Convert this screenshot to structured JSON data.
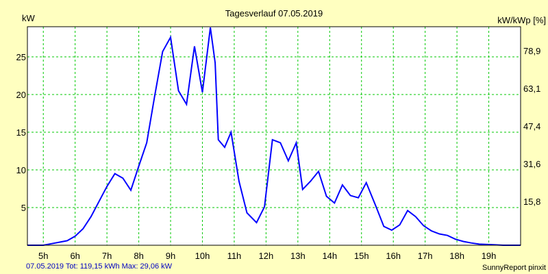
{
  "chart_data": {
    "type": "line",
    "title": "Tagesverlauf 07.05.2019",
    "ylabel_left": "kW",
    "ylabel_right": "kW/kWp [%]",
    "xlim": [
      4.5,
      20.0
    ],
    "ylim": [
      0,
      29
    ],
    "x_ticks": [
      5,
      6,
      7,
      8,
      9,
      10,
      11,
      12,
      13,
      14,
      15,
      16,
      17,
      18,
      19
    ],
    "x_tick_labels": [
      "5h",
      "6h",
      "7h",
      "8h",
      "9h",
      "10h",
      "11h",
      "12h",
      "13h",
      "14h",
      "15h",
      "16h",
      "17h",
      "18h",
      "19h"
    ],
    "y_ticks_left": [
      5,
      10,
      15,
      20,
      25
    ],
    "y_tick_labels_left": [
      "5",
      "10",
      "15",
      "20",
      "25"
    ],
    "y_ticks_right_at": [
      5.8,
      10.8,
      15.8,
      20.8,
      25.8
    ],
    "y_tick_labels_right": [
      "15,8",
      "31,6",
      "47,4",
      "63,1",
      "78,9"
    ],
    "grid": true,
    "series": [
      {
        "x": [
          4.5,
          5.0,
          5.25,
          5.5,
          5.75,
          6.0,
          6.25,
          6.5,
          6.75,
          7.0,
          7.25,
          7.5,
          7.75,
          8.0,
          8.25,
          8.5,
          8.75,
          9.0,
          9.25,
          9.5,
          9.75,
          10.0,
          10.25,
          10.4,
          10.5,
          10.7,
          10.9,
          11.15,
          11.4,
          11.7,
          11.95,
          12.2,
          12.45,
          12.7,
          12.95,
          13.15,
          13.4,
          13.65,
          13.9,
          14.15,
          14.4,
          14.65,
          14.9,
          15.15,
          15.45,
          15.7,
          15.95,
          16.2,
          16.45,
          16.7,
          16.95,
          17.2,
          17.45,
          17.7,
          17.95,
          18.2,
          18.45,
          18.7,
          18.95,
          19.2,
          19.45,
          19.7,
          20.0
        ],
        "y": [
          0.0,
          0.0,
          0.2,
          0.4,
          0.6,
          1.2,
          2.2,
          3.8,
          5.8,
          7.8,
          9.5,
          8.9,
          7.3,
          10.5,
          13.6,
          19.8,
          25.7,
          27.6,
          20.5,
          18.7,
          26.4,
          20.3,
          28.9,
          24.2,
          14.0,
          13.0,
          15.0,
          8.5,
          4.3,
          3.0,
          5.1,
          14.0,
          13.6,
          11.2,
          13.6,
          7.4,
          8.5,
          9.8,
          6.5,
          5.6,
          8.0,
          6.6,
          6.3,
          8.3,
          5.2,
          2.5,
          2.0,
          2.7,
          4.6,
          3.8,
          2.6,
          1.9,
          1.5,
          1.3,
          0.8,
          0.5,
          0.3,
          0.15,
          0.1,
          0.05,
          0.0,
          0.0,
          0.0
        ]
      }
    ],
    "colors": {
      "background": "#ffffc0",
      "plot_area": "#ffffff",
      "grid": "#00c800",
      "line": "#0000ff",
      "footer": "#0000c0"
    }
  },
  "footer": {
    "left": "07.05.2019 Tot: 119,15 kWh Max: 29,06 kW",
    "right": "SunnyReport pinxit"
  }
}
